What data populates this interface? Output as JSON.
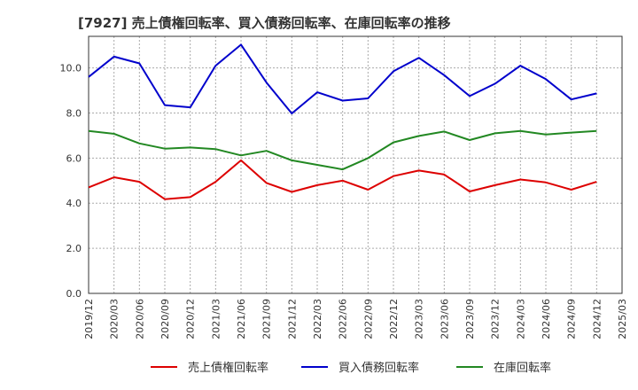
{
  "chart_data": {
    "type": "line",
    "title": "[7927]  売上債権回転率、買入債務回転率、在庫回転率の推移",
    "xlabel": "",
    "ylabel": "",
    "ylim": [
      0,
      11.4
    ],
    "yticks": [
      0.0,
      2.0,
      4.0,
      6.0,
      8.0,
      10.0
    ],
    "ytick_labels": [
      "0.0",
      "2.0",
      "4.0",
      "6.0",
      "8.0",
      "10.0"
    ],
    "x": [
      "2019/12",
      "2020/03",
      "2020/06",
      "2020/09",
      "2020/12",
      "2021/03",
      "2021/06",
      "2021/09",
      "2021/12",
      "2022/03",
      "2022/06",
      "2022/09",
      "2022/12",
      "2023/03",
      "2023/06",
      "2023/09",
      "2023/12",
      "2024/03",
      "2024/06",
      "2024/09",
      "2024/12",
      "2025/03"
    ],
    "grid": true,
    "legend_position": "bottom",
    "series": [
      {
        "name": "売上債権回転率",
        "color": "#dd0000",
        "values": [
          4.7,
          5.15,
          4.95,
          4.18,
          4.27,
          4.95,
          5.9,
          4.9,
          4.5,
          4.8,
          5.0,
          4.6,
          5.2,
          5.45,
          5.27,
          4.52,
          4.8,
          5.05,
          4.92,
          4.6,
          4.95,
          null
        ]
      },
      {
        "name": "買入債務回転率",
        "color": "#0000cc",
        "values": [
          9.6,
          10.5,
          10.2,
          8.35,
          8.25,
          10.1,
          11.03,
          9.35,
          7.98,
          8.92,
          8.55,
          8.65,
          9.85,
          10.45,
          9.68,
          8.75,
          9.3,
          10.1,
          9.5,
          8.6,
          8.87,
          null
        ]
      },
      {
        "name": "在庫回転率",
        "color": "#228822",
        "values": [
          7.2,
          7.08,
          6.65,
          6.42,
          6.47,
          6.4,
          6.12,
          6.32,
          5.9,
          5.7,
          5.5,
          6.0,
          6.7,
          6.98,
          7.18,
          6.8,
          7.1,
          7.2,
          7.05,
          7.13,
          7.2,
          null
        ]
      }
    ]
  }
}
